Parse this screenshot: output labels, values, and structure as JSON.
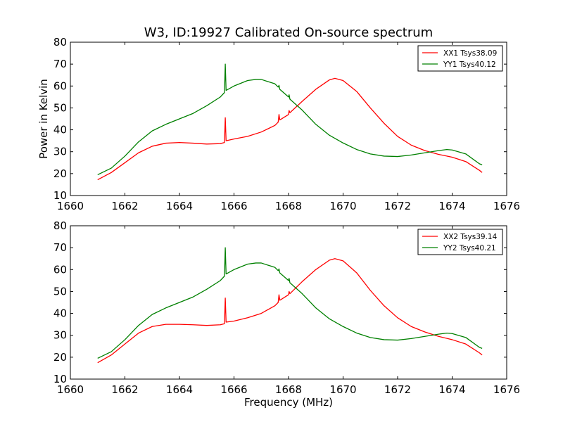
{
  "figure": {
    "title": "W3, ID:19927 Calibrated On-source spectrum"
  },
  "chart_data": [
    {
      "type": "line",
      "title": "W3, ID:19927 Calibrated On-source spectrum",
      "xlabel": "",
      "ylabel": "Power in Kelvin",
      "xlim": [
        1660,
        1676
      ],
      "ylim": [
        10,
        80
      ],
      "xticks": [
        "1660",
        "1662",
        "1664",
        "1666",
        "1668",
        "1670",
        "1672",
        "1674",
        "1676"
      ],
      "yticks": [
        "10",
        "20",
        "30",
        "40",
        "50",
        "60",
        "70",
        "80"
      ],
      "grid": false,
      "legend_position": "top-right",
      "series": [
        {
          "name": "XX1 Tsys38.09",
          "color": "#ff0000",
          "points": [
            [
              1661.0,
              17.2
            ],
            [
              1661.5,
              20.5
            ],
            [
              1662.0,
              25.0
            ],
            [
              1662.5,
              29.5
            ],
            [
              1663.0,
              32.5
            ],
            [
              1663.5,
              33.9
            ],
            [
              1664.0,
              34.2
            ],
            [
              1664.5,
              33.9
            ],
            [
              1665.0,
              33.5
            ],
            [
              1665.5,
              33.7
            ],
            [
              1665.65,
              34.2
            ],
            [
              1665.68,
              45.5
            ],
            [
              1665.71,
              35.0
            ],
            [
              1666.0,
              35.8
            ],
            [
              1666.5,
              37.0
            ],
            [
              1667.0,
              39.0
            ],
            [
              1667.5,
              42.0
            ],
            [
              1667.62,
              43.5
            ],
            [
              1667.65,
              47.0
            ],
            [
              1667.68,
              44.5
            ],
            [
              1668.0,
              47.0
            ],
            [
              1668.02,
              48.8
            ],
            [
              1668.05,
              47.8
            ],
            [
              1668.5,
              53.0
            ],
            [
              1669.0,
              58.5
            ],
            [
              1669.5,
              62.8
            ],
            [
              1669.7,
              63.5
            ],
            [
              1670.0,
              62.5
            ],
            [
              1670.5,
              57.5
            ],
            [
              1671.0,
              50.0
            ],
            [
              1671.5,
              43.0
            ],
            [
              1672.0,
              37.0
            ],
            [
              1672.5,
              33.0
            ],
            [
              1673.0,
              30.5
            ],
            [
              1673.5,
              28.8
            ],
            [
              1674.0,
              27.5
            ],
            [
              1674.5,
              25.5
            ],
            [
              1675.0,
              21.5
            ],
            [
              1675.1,
              20.5
            ]
          ]
        },
        {
          "name": "YY1 Tsys40.12",
          "color": "#008000",
          "points": [
            [
              1661.0,
              19.5
            ],
            [
              1661.5,
              22.5
            ],
            [
              1662.0,
              28.0
            ],
            [
              1662.5,
              34.5
            ],
            [
              1663.0,
              39.5
            ],
            [
              1663.5,
              42.5
            ],
            [
              1664.0,
              45.0
            ],
            [
              1664.5,
              47.5
            ],
            [
              1665.0,
              51.0
            ],
            [
              1665.5,
              55.0
            ],
            [
              1665.65,
              57.0
            ],
            [
              1665.68,
              70.0
            ],
            [
              1665.71,
              58.0
            ],
            [
              1666.0,
              60.0
            ],
            [
              1666.5,
              62.5
            ],
            [
              1666.8,
              63.0
            ],
            [
              1667.0,
              63.0
            ],
            [
              1667.5,
              61.0
            ],
            [
              1667.62,
              59.5
            ],
            [
              1667.65,
              60.3
            ],
            [
              1667.68,
              58.5
            ],
            [
              1668.0,
              55.0
            ],
            [
              1668.02,
              56.0
            ],
            [
              1668.05,
              54.0
            ],
            [
              1668.5,
              49.0
            ],
            [
              1669.0,
              42.5
            ],
            [
              1669.5,
              37.5
            ],
            [
              1670.0,
              34.0
            ],
            [
              1670.5,
              31.0
            ],
            [
              1671.0,
              29.0
            ],
            [
              1671.5,
              28.0
            ],
            [
              1672.0,
              27.8
            ],
            [
              1672.5,
              28.5
            ],
            [
              1673.0,
              29.5
            ],
            [
              1673.5,
              30.5
            ],
            [
              1673.8,
              31.0
            ],
            [
              1674.0,
              30.8
            ],
            [
              1674.5,
              29.0
            ],
            [
              1675.0,
              24.5
            ],
            [
              1675.1,
              24.0
            ]
          ]
        }
      ]
    },
    {
      "type": "line",
      "title": "",
      "xlabel": "Frequency (MHz)",
      "ylabel": "",
      "xlim": [
        1660,
        1676
      ],
      "ylim": [
        10,
        80
      ],
      "xticks": [
        "1660",
        "1662",
        "1664",
        "1666",
        "1668",
        "1670",
        "1672",
        "1674",
        "1676"
      ],
      "yticks": [
        "10",
        "20",
        "30",
        "40",
        "50",
        "60",
        "70",
        "80"
      ],
      "grid": false,
      "legend_position": "top-right",
      "series": [
        {
          "name": "XX2 Tsys39.14",
          "color": "#ff0000",
          "points": [
            [
              1661.0,
              17.5
            ],
            [
              1661.5,
              21.0
            ],
            [
              1662.0,
              26.0
            ],
            [
              1662.5,
              31.0
            ],
            [
              1663.0,
              34.0
            ],
            [
              1663.5,
              35.0
            ],
            [
              1664.0,
              35.0
            ],
            [
              1664.5,
              34.8
            ],
            [
              1665.0,
              34.5
            ],
            [
              1665.5,
              34.8
            ],
            [
              1665.65,
              35.3
            ],
            [
              1665.68,
              47.0
            ],
            [
              1665.71,
              36.0
            ],
            [
              1666.0,
              36.5
            ],
            [
              1666.5,
              38.0
            ],
            [
              1667.0,
              40.0
            ],
            [
              1667.5,
              43.5
            ],
            [
              1667.62,
              45.0
            ],
            [
              1667.65,
              48.5
            ],
            [
              1667.68,
              46.0
            ],
            [
              1668.0,
              48.5
            ],
            [
              1668.02,
              50.0
            ],
            [
              1668.05,
              49.0
            ],
            [
              1668.5,
              54.5
            ],
            [
              1669.0,
              60.0
            ],
            [
              1669.5,
              64.3
            ],
            [
              1669.7,
              65.0
            ],
            [
              1670.0,
              64.0
            ],
            [
              1670.5,
              58.5
            ],
            [
              1671.0,
              50.5
            ],
            [
              1671.5,
              43.5
            ],
            [
              1672.0,
              38.0
            ],
            [
              1672.5,
              34.0
            ],
            [
              1673.0,
              31.5
            ],
            [
              1673.5,
              29.5
            ],
            [
              1674.0,
              28.0
            ],
            [
              1674.5,
              26.0
            ],
            [
              1675.0,
              22.0
            ],
            [
              1675.1,
              21.0
            ]
          ]
        },
        {
          "name": "YY2 Tsys40.21",
          "color": "#008000",
          "points": [
            [
              1661.0,
              19.5
            ],
            [
              1661.5,
              22.5
            ],
            [
              1662.0,
              28.0
            ],
            [
              1662.5,
              34.5
            ],
            [
              1663.0,
              39.5
            ],
            [
              1663.5,
              42.5
            ],
            [
              1664.0,
              45.0
            ],
            [
              1664.5,
              47.5
            ],
            [
              1665.0,
              51.0
            ],
            [
              1665.5,
              55.0
            ],
            [
              1665.65,
              57.0
            ],
            [
              1665.68,
              70.0
            ],
            [
              1665.71,
              58.0
            ],
            [
              1666.0,
              60.0
            ],
            [
              1666.5,
              62.5
            ],
            [
              1666.8,
              63.0
            ],
            [
              1667.0,
              63.0
            ],
            [
              1667.5,
              61.0
            ],
            [
              1667.62,
              59.5
            ],
            [
              1667.65,
              60.3
            ],
            [
              1667.68,
              58.5
            ],
            [
              1668.0,
              55.0
            ],
            [
              1668.02,
              56.0
            ],
            [
              1668.05,
              54.0
            ],
            [
              1668.5,
              49.0
            ],
            [
              1669.0,
              42.5
            ],
            [
              1669.5,
              37.5
            ],
            [
              1670.0,
              34.0
            ],
            [
              1670.5,
              31.0
            ],
            [
              1671.0,
              29.0
            ],
            [
              1671.5,
              28.0
            ],
            [
              1672.0,
              27.8
            ],
            [
              1672.5,
              28.5
            ],
            [
              1673.0,
              29.5
            ],
            [
              1673.5,
              30.5
            ],
            [
              1673.8,
              31.0
            ],
            [
              1674.0,
              30.8
            ],
            [
              1674.5,
              29.0
            ],
            [
              1675.0,
              24.5
            ],
            [
              1675.1,
              24.0
            ]
          ]
        }
      ]
    }
  ]
}
